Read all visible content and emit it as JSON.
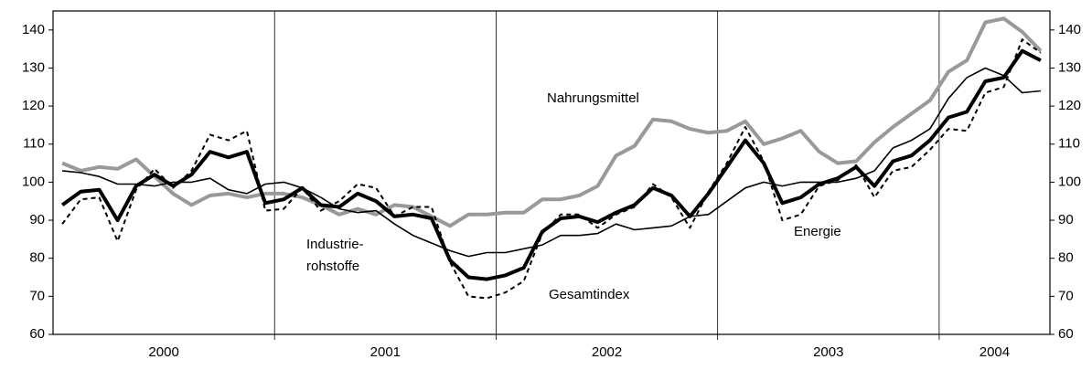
{
  "chart_data": {
    "type": "line",
    "year_labels": [
      "2000",
      "2001",
      "2002",
      "2003",
      "2004"
    ],
    "ylim": [
      60,
      145
    ],
    "yticks": [
      60,
      70,
      80,
      90,
      100,
      110,
      120,
      130,
      140
    ],
    "series": [
      {
        "name": "Nahrungsmittel",
        "color": "#999999",
        "width": 4,
        "dashed": false,
        "values": [
          105,
          103,
          104,
          103.5,
          106,
          101.5,
          97,
          94,
          96.5,
          97,
          96,
          97,
          97,
          96,
          94,
          91.5,
          93,
          91.5,
          94,
          93.5,
          91,
          88.5,
          91.5,
          91.5,
          92,
          92,
          95.5,
          95.5,
          96.5,
          99,
          107,
          109.5,
          116.5,
          116,
          114,
          113,
          113.5,
          116,
          110,
          111.5,
          113.5,
          108,
          105,
          105.5,
          110.5,
          114.5,
          118,
          121.5,
          129,
          132,
          142,
          143,
          139.5,
          134.5
        ]
      },
      {
        "name": "Industrierohstoffe",
        "color": "#000000",
        "width": 1.6,
        "dashed": false,
        "values": [
          103,
          102.5,
          101.5,
          99.5,
          99.5,
          99,
          100,
          100,
          101,
          98,
          97,
          99.5,
          100,
          98.5,
          96,
          93,
          92,
          92.5,
          89,
          86,
          84,
          82,
          80.5,
          81.5,
          81.5,
          82.5,
          83.5,
          86,
          86,
          86.5,
          89,
          87.5,
          88,
          88.5,
          91,
          91.5,
          95,
          98.5,
          100,
          99,
          100,
          100,
          100,
          101,
          103,
          109,
          111,
          114,
          122,
          127.5,
          130,
          128,
          123.5,
          124
        ]
      },
      {
        "name": "Energie",
        "color": "#000000",
        "width": 2,
        "dashed": true,
        "values": [
          89,
          95.5,
          96,
          84.5,
          98,
          103.5,
          98.5,
          103,
          112.5,
          111,
          113.5,
          92.5,
          93,
          98.5,
          92.5,
          95,
          99.5,
          98.5,
          91,
          93.5,
          93.5,
          79,
          70,
          69.5,
          71,
          74,
          86.5,
          91.5,
          91.5,
          88,
          91.5,
          93.5,
          99.5,
          96,
          88,
          97.5,
          105,
          114.5,
          105.5,
          90,
          91.5,
          99,
          100.5,
          104.5,
          96,
          103,
          104,
          108.5,
          114,
          113.5,
          123.5,
          125,
          137.5,
          134
        ]
      },
      {
        "name": "Gesamtindex",
        "color": "#000000",
        "width": 4,
        "dashed": false,
        "values": [
          94,
          97.5,
          98,
          90,
          99,
          102,
          99,
          102,
          108,
          106.5,
          108,
          94.5,
          95.5,
          98.5,
          94,
          93.5,
          97,
          95,
          91,
          91.5,
          90.5,
          79.5,
          75,
          74.5,
          75.5,
          77.5,
          87,
          90.5,
          91,
          89.5,
          92,
          94,
          98.5,
          96.5,
          91,
          97,
          104,
          111,
          105,
          94.5,
          96,
          99.5,
          101,
          104,
          99,
          105.5,
          107,
          111,
          117,
          118.5,
          126.5,
          127.5,
          134.5,
          132
        ]
      }
    ],
    "annotations": [
      [
        "Nahrungsmittel"
      ],
      [
        "Industrie-",
        "rohstoffe"
      ],
      [
        "Gesamtindex"
      ],
      [
        "Energie"
      ]
    ]
  }
}
